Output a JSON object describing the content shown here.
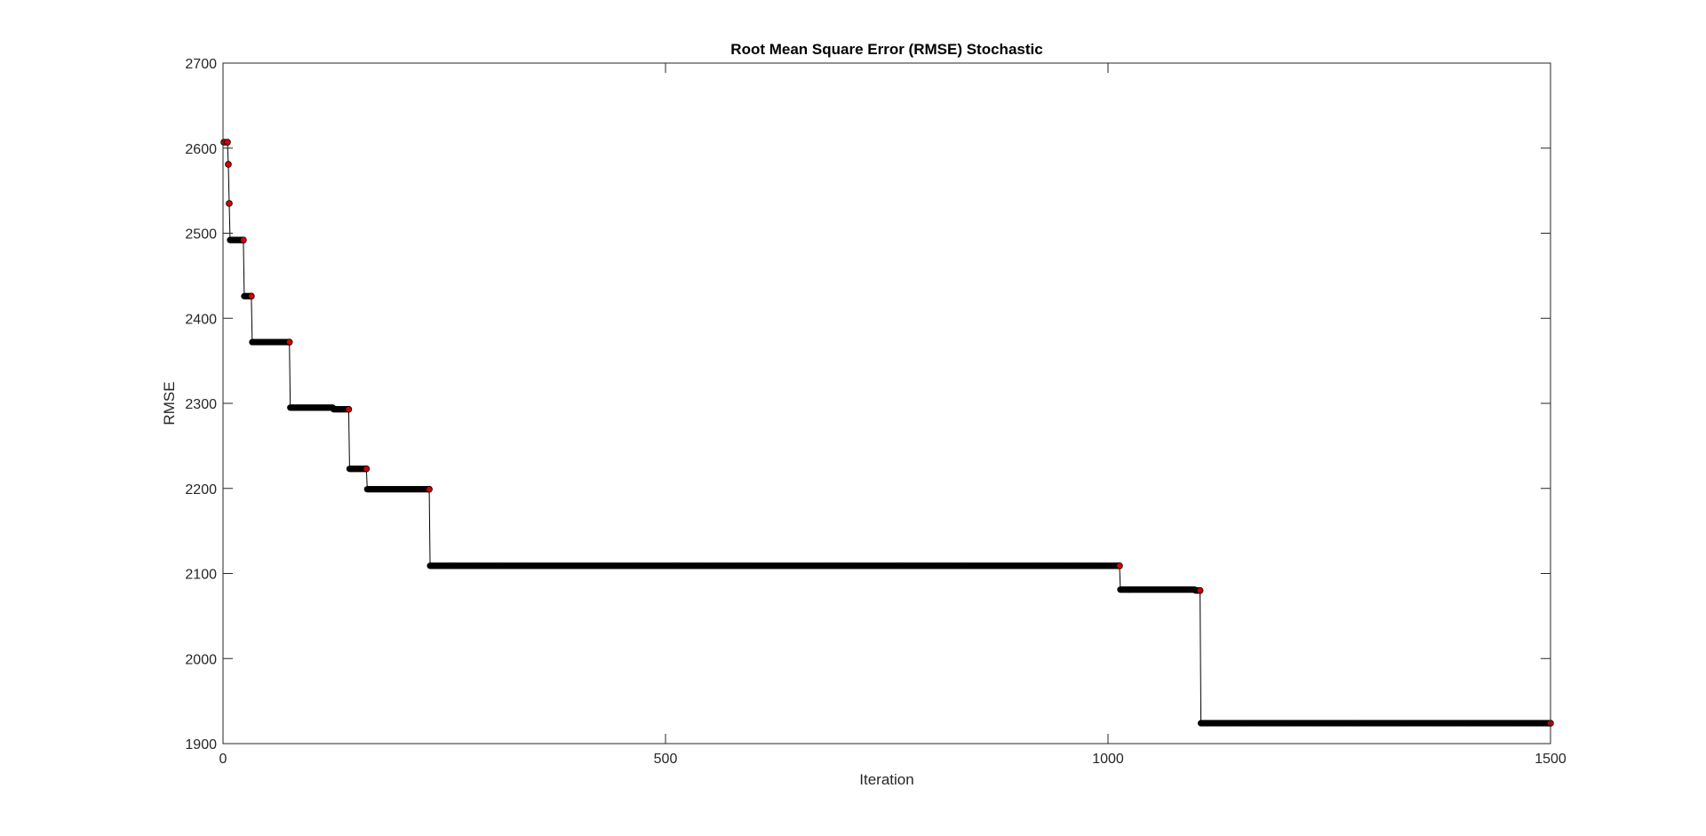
{
  "chart_data": {
    "type": "line",
    "title": "Root Mean Square Error (RMSE) Stochastic",
    "xlabel": "Iteration",
    "ylabel": "RMSE",
    "xlim": [
      0,
      1500
    ],
    "ylim": [
      1900,
      2700
    ],
    "xticks": [
      0,
      500,
      1000,
      1500
    ],
    "yticks": [
      1900,
      2000,
      2100,
      2200,
      2300,
      2400,
      2500,
      2600,
      2700
    ],
    "grid": false,
    "legend": "none",
    "series": [
      {
        "style": "step",
        "marker_color": "#000000",
        "improvement_marker_color": "#d40000",
        "line_color": "#000000",
        "points": [
          [
            1,
            2607
          ],
          [
            5,
            2607
          ],
          [
            6,
            2581
          ],
          [
            7,
            2535
          ],
          [
            8,
            2492
          ],
          [
            23,
            2492
          ],
          [
            24,
            2426
          ],
          [
            32,
            2426
          ],
          [
            33,
            2372
          ],
          [
            75,
            2372
          ],
          [
            76,
            2295
          ],
          [
            124,
            2295
          ],
          [
            125,
            2293
          ],
          [
            142,
            2293
          ],
          [
            143,
            2223
          ],
          [
            162,
            2223
          ],
          [
            163,
            2199
          ],
          [
            233,
            2199
          ],
          [
            234,
            2109
          ],
          [
            1013,
            2109
          ],
          [
            1014,
            2081
          ],
          [
            1098,
            2081
          ],
          [
            1099,
            2080
          ],
          [
            1104,
            2080
          ],
          [
            1105,
            1924
          ],
          [
            1500,
            1924
          ]
        ],
        "improvement_points": [
          [
            1,
            2607
          ],
          [
            5,
            2607
          ],
          [
            6,
            2581
          ],
          [
            7,
            2535
          ],
          [
            23,
            2492
          ],
          [
            32,
            2426
          ],
          [
            75,
            2372
          ],
          [
            142,
            2293
          ],
          [
            162,
            2223
          ],
          [
            233,
            2199
          ],
          [
            1013,
            2109
          ],
          [
            1104,
            2080
          ],
          [
            1500,
            1924
          ]
        ]
      }
    ]
  }
}
